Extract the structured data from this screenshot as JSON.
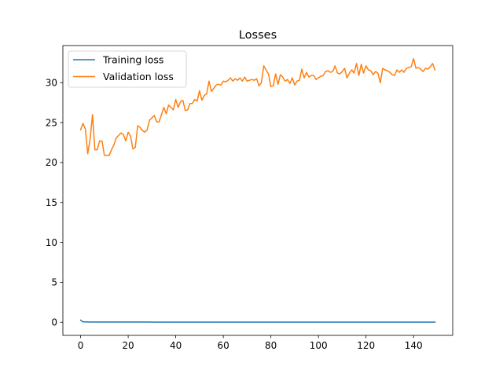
{
  "chart_data": {
    "type": "line",
    "title": "Losses",
    "xlabel": "",
    "ylabel": "",
    "xlim": [
      -7.45,
      156.45
    ],
    "ylim": [
      -1.65,
      34.65
    ],
    "xticks": [
      0,
      20,
      40,
      60,
      80,
      100,
      120,
      140
    ],
    "yticks": [
      0,
      5,
      10,
      15,
      20,
      25,
      30
    ],
    "grid": false,
    "legend": "top-left",
    "series": [
      {
        "name": "Training loss",
        "color": "#1f77b4",
        "x": [
          0,
          1,
          2,
          3,
          4,
          5,
          6,
          7,
          8,
          9,
          10,
          11,
          12,
          13,
          14,
          15,
          16,
          17,
          18,
          19,
          20,
          21,
          22,
          23,
          24,
          25,
          26,
          27,
          28,
          29,
          30,
          31,
          32,
          33,
          34,
          35,
          36,
          37,
          38,
          39,
          40,
          41,
          42,
          43,
          44,
          45,
          46,
          47,
          48,
          49,
          50,
          51,
          52,
          53,
          54,
          55,
          56,
          57,
          58,
          59,
          60,
          61,
          62,
          63,
          64,
          65,
          66,
          67,
          68,
          69,
          70,
          71,
          72,
          73,
          74,
          75,
          76,
          77,
          78,
          79,
          80,
          81,
          82,
          83,
          84,
          85,
          86,
          87,
          88,
          89,
          90,
          91,
          92,
          93,
          94,
          95,
          96,
          97,
          98,
          99,
          100,
          101,
          102,
          103,
          104,
          105,
          106,
          107,
          108,
          109,
          110,
          111,
          112,
          113,
          114,
          115,
          116,
          117,
          118,
          119,
          120,
          121,
          122,
          123,
          124,
          125,
          126,
          127,
          128,
          129,
          130,
          131,
          132,
          133,
          134,
          135,
          136,
          137,
          138,
          139,
          140,
          141,
          142,
          143,
          144,
          145,
          146,
          147,
          148,
          149
        ],
        "y": [
          0.25,
          0.05,
          0.03,
          0.03,
          0.02,
          0.02,
          0.02,
          0.02,
          0.02,
          0.02,
          0.02,
          0.02,
          0.02,
          0.02,
          0.02,
          0.02,
          0.02,
          0.02,
          0.02,
          0.02,
          0.02,
          0.02,
          0.02,
          0.02,
          0.02,
          0.02,
          0.02,
          0.02,
          0.02,
          0.02,
          0.01,
          0.01,
          0.01,
          0.01,
          0.01,
          0.01,
          0.01,
          0.01,
          0.01,
          0.01,
          0.01,
          0.01,
          0.01,
          0.01,
          0.01,
          0.01,
          0.01,
          0.01,
          0.01,
          0.01,
          0.01,
          0.01,
          0.01,
          0.01,
          0.01,
          0.01,
          0.01,
          0.01,
          0.01,
          0.01,
          0.01,
          0.01,
          0.01,
          0.01,
          0.01,
          0.01,
          0.01,
          0.01,
          0.01,
          0.01,
          0.01,
          0.01,
          0.01,
          0.01,
          0.01,
          0.01,
          0.01,
          0.01,
          0.01,
          0.01,
          0.01,
          0.01,
          0.01,
          0.01,
          0.01,
          0.01,
          0.01,
          0.01,
          0.01,
          0.01,
          0.01,
          0.01,
          0.01,
          0.01,
          0.01,
          0.01,
          0.01,
          0.01,
          0.01,
          0.01,
          0.01,
          0.01,
          0.01,
          0.01,
          0.01,
          0.01,
          0.01,
          0.01,
          0.01,
          0.01,
          0.01,
          0.01,
          0.01,
          0.01,
          0.01,
          0.01,
          0.01,
          0.01,
          0.01,
          0.01,
          0.01,
          0.01,
          0.01,
          0.01,
          0.01,
          0.01,
          0.01,
          0.01,
          0.01,
          0.01,
          0.01,
          0.01,
          0.01,
          0.01,
          0.01,
          0.01,
          0.01,
          0.01,
          0.01,
          0.01,
          0.01,
          0.01,
          0.01,
          0.01,
          0.01,
          0.01,
          0.01,
          0.01,
          0.01,
          0.01
        ]
      },
      {
        "name": "Validation loss",
        "color": "#ff7f0e",
        "x": [
          0,
          1,
          2,
          3,
          4,
          5,
          6,
          7,
          8,
          9,
          10,
          11,
          12,
          13,
          14,
          15,
          16,
          17,
          18,
          19,
          20,
          21,
          22,
          23,
          24,
          25,
          26,
          27,
          28,
          29,
          30,
          31,
          32,
          33,
          34,
          35,
          36,
          37,
          38,
          39,
          40,
          41,
          42,
          43,
          44,
          45,
          46,
          47,
          48,
          49,
          50,
          51,
          52,
          53,
          54,
          55,
          56,
          57,
          58,
          59,
          60,
          61,
          62,
          63,
          64,
          65,
          66,
          67,
          68,
          69,
          70,
          71,
          72,
          73,
          74,
          75,
          76,
          77,
          78,
          79,
          80,
          81,
          82,
          83,
          84,
          85,
          86,
          87,
          88,
          89,
          90,
          91,
          92,
          93,
          94,
          95,
          96,
          97,
          98,
          99,
          100,
          101,
          102,
          103,
          104,
          105,
          106,
          107,
          108,
          109,
          110,
          111,
          112,
          113,
          114,
          115,
          116,
          117,
          118,
          119,
          120,
          121,
          122,
          123,
          124,
          125,
          126,
          127,
          128,
          129,
          130,
          131,
          132,
          133,
          134,
          135,
          136,
          137,
          138,
          139,
          140,
          141,
          142,
          143,
          144,
          145,
          146,
          147,
          148,
          149
        ],
        "y": [
          24.1,
          24.9,
          24.2,
          21.1,
          22.9,
          26.0,
          21.6,
          21.6,
          22.7,
          22.7,
          20.9,
          20.9,
          20.9,
          21.6,
          22.2,
          23.1,
          23.4,
          23.7,
          23.5,
          22.7,
          23.8,
          23.3,
          21.7,
          21.9,
          24.6,
          24.4,
          24.0,
          23.8,
          24.1,
          25.3,
          25.6,
          25.9,
          25.1,
          25.1,
          26.0,
          26.9,
          26.1,
          27.2,
          26.9,
          26.6,
          27.9,
          26.9,
          27.6,
          27.8,
          26.5,
          26.6,
          27.4,
          27.4,
          27.9,
          27.7,
          29.0,
          27.8,
          28.4,
          28.6,
          30.2,
          28.9,
          29.3,
          29.7,
          29.8,
          29.7,
          30.2,
          30.1,
          30.3,
          30.6,
          30.2,
          30.5,
          30.3,
          30.6,
          30.2,
          30.7,
          30.2,
          30.3,
          30.4,
          30.3,
          30.5,
          29.6,
          30.0,
          32.1,
          31.6,
          31.1,
          29.5,
          29.6,
          31.1,
          29.8,
          31.0,
          30.7,
          30.2,
          30.4,
          29.9,
          30.6,
          29.7,
          30.2,
          30.3,
          31.7,
          30.6,
          31.3,
          30.7,
          30.9,
          30.9,
          30.4,
          30.6,
          30.8,
          30.9,
          31.4,
          31.5,
          31.3,
          31.4,
          32.1,
          31.2,
          31.1,
          31.4,
          31.8,
          30.6,
          31.2,
          31.6,
          31.2,
          32.4,
          30.9,
          32.3,
          31.2,
          32.1,
          31.6,
          31.5,
          31.0,
          31.4,
          31.2,
          30.0,
          31.8,
          31.6,
          31.5,
          31.3,
          31.0,
          30.9,
          31.6,
          31.3,
          31.6,
          31.3,
          31.8,
          31.9,
          32.0,
          33.0,
          31.8,
          31.9,
          31.7,
          31.4,
          31.8,
          31.7,
          32.0,
          32.4,
          31.6
        ]
      }
    ]
  }
}
